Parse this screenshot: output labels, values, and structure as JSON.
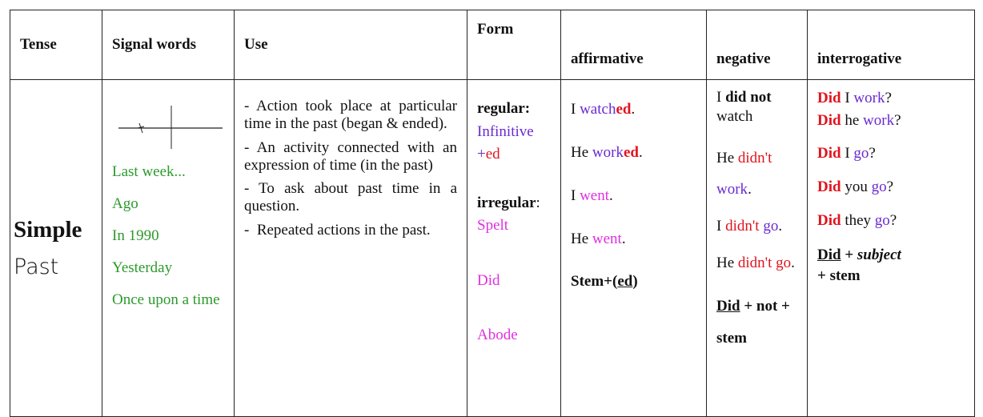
{
  "table": {
    "header": [
      "Tense",
      "Signal words",
      "Use",
      "Form",
      "affirmative",
      "negative",
      "interrogative"
    ],
    "row": {
      "tense": [
        "Simple",
        "Past"
      ],
      "signal_words": [
        "Last week...",
        "Ago",
        "In 1990",
        "Yesterday",
        "Once upon a time"
      ],
      "use": [
        "- Action took place at particular time in the past (began & ended).",
        "- An activity connected with an expression of time (in the past)",
        "- To ask about past time in a question.",
        "-",
        "Repeated actions in the past."
      ],
      "form": {
        "regular": [
          "regular:",
          "Infinitive",
          "+",
          "ed"
        ],
        "irregular": [
          "irregular",
          ":"
        ],
        "examples": [
          "Spelt",
          "Did",
          "Abode"
        ]
      },
      "affirmative": [
        [
          "I ",
          "watch",
          "ed",
          "."
        ],
        [
          "He ",
          "work",
          "ed",
          "."
        ],
        [
          "I ",
          "went",
          "."
        ],
        [
          "He ",
          "went",
          "."
        ],
        [
          "Stem+(",
          "ed",
          ")"
        ]
      ],
      "negative": [
        [
          "I ",
          "did not",
          "watch"
        ],
        [
          "He ",
          "didn't",
          "work",
          "."
        ],
        [
          "I ",
          "didn't",
          " go",
          "."
        ],
        [
          "He ",
          "didn't go",
          "."
        ],
        [
          "Did",
          " + not + ",
          "stem"
        ]
      ],
      "interrogative": [
        [
          "Did",
          " I ",
          "work",
          "?"
        ],
        [
          "Did",
          " he ",
          "work",
          "?"
        ],
        [
          "Did",
          " I ",
          "go",
          "?"
        ],
        [
          "Did",
          " you ",
          "go",
          "?"
        ],
        [
          "Did",
          " they ",
          "go",
          "?"
        ],
        [
          "Did",
          " + ",
          "subject",
          " + stem"
        ]
      ]
    }
  }
}
